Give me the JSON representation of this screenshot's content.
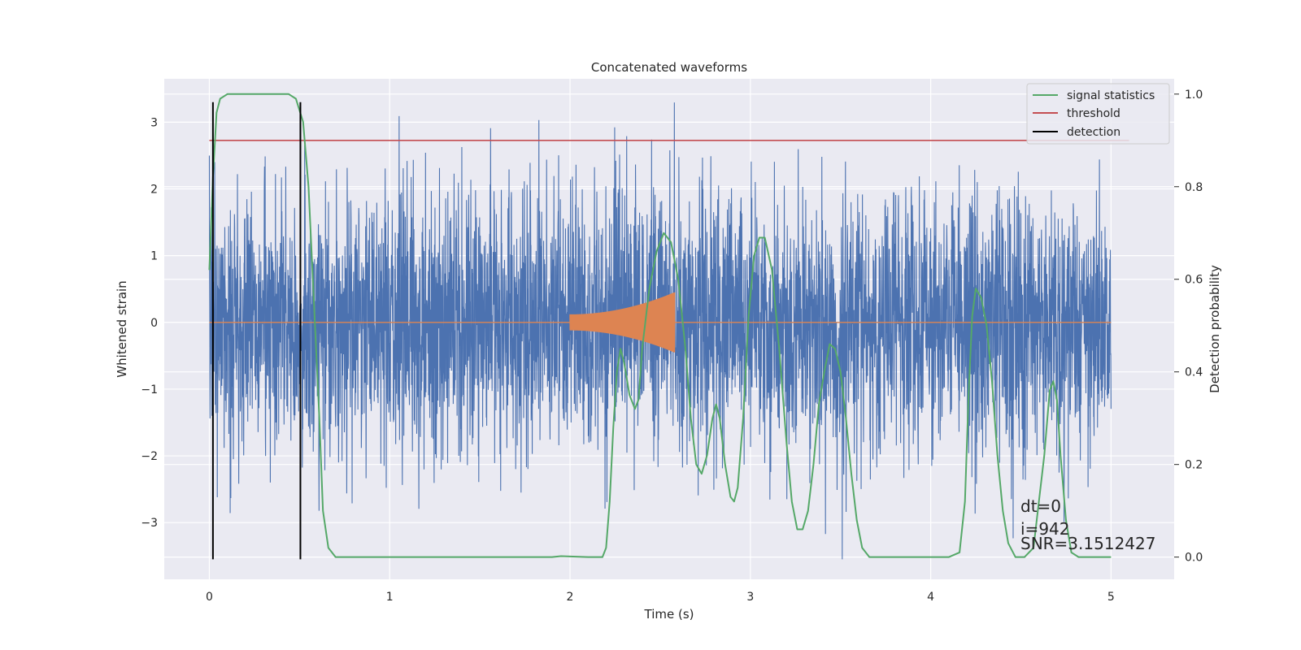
{
  "chart_data": {
    "type": "line",
    "title": "Concatenated waveforms",
    "xlabel": "Time (s)",
    "ylabel": "Whitened strain",
    "y2label": "Detection probability",
    "xlim": [
      -0.25,
      5.35
    ],
    "ylim": [
      -3.85,
      3.65
    ],
    "y2lim": [
      -0.048,
      1.033
    ],
    "x_ticks": [
      "0",
      "1",
      "2",
      "3",
      "4",
      "5"
    ],
    "y_ticks": [
      "−3",
      "−2",
      "−1",
      "0",
      "1",
      "2",
      "3"
    ],
    "y2_ticks": [
      "0.0",
      "0.2",
      "0.4",
      "0.6",
      "0.8",
      "1.0"
    ],
    "grid": true,
    "legend_position": "top-right",
    "colors": {
      "strain": "#4c72b0",
      "template": "#dd8452",
      "signal": "#55a868",
      "threshold": "#c44e52",
      "detection": "#000000",
      "background": "#eaeaf2"
    },
    "series": [
      {
        "name": "signal statistics",
        "axis": "right",
        "points": [
          [
            0.0,
            0.62
          ],
          [
            0.02,
            0.82
          ],
          [
            0.04,
            0.96
          ],
          [
            0.06,
            0.99
          ],
          [
            0.1,
            1.0
          ],
          [
            0.3,
            1.0
          ],
          [
            0.44,
            1.0
          ],
          [
            0.48,
            0.99
          ],
          [
            0.52,
            0.94
          ],
          [
            0.55,
            0.8
          ],
          [
            0.58,
            0.55
          ],
          [
            0.61,
            0.3
          ],
          [
            0.63,
            0.1
          ],
          [
            0.66,
            0.02
          ],
          [
            0.7,
            0.0
          ],
          [
            1.5,
            0.0
          ],
          [
            1.9,
            0.0
          ],
          [
            1.95,
            0.002
          ],
          [
            2.1,
            0.0
          ],
          [
            2.18,
            0.0
          ],
          [
            2.2,
            0.02
          ],
          [
            2.22,
            0.12
          ],
          [
            2.24,
            0.28
          ],
          [
            2.26,
            0.4
          ],
          [
            2.28,
            0.45
          ],
          [
            2.3,
            0.42
          ],
          [
            2.33,
            0.35
          ],
          [
            2.36,
            0.32
          ],
          [
            2.38,
            0.34
          ],
          [
            2.4,
            0.45
          ],
          [
            2.44,
            0.58
          ],
          [
            2.48,
            0.66
          ],
          [
            2.52,
            0.7
          ],
          [
            2.56,
            0.68
          ],
          [
            2.6,
            0.6
          ],
          [
            2.64,
            0.45
          ],
          [
            2.67,
            0.3
          ],
          [
            2.7,
            0.2
          ],
          [
            2.73,
            0.18
          ],
          [
            2.76,
            0.22
          ],
          [
            2.79,
            0.3
          ],
          [
            2.81,
            0.33
          ],
          [
            2.83,
            0.3
          ],
          [
            2.86,
            0.2
          ],
          [
            2.89,
            0.13
          ],
          [
            2.91,
            0.12
          ],
          [
            2.93,
            0.15
          ],
          [
            2.96,
            0.3
          ],
          [
            2.99,
            0.52
          ],
          [
            3.02,
            0.65
          ],
          [
            3.05,
            0.69
          ],
          [
            3.08,
            0.69
          ],
          [
            3.12,
            0.62
          ],
          [
            3.16,
            0.45
          ],
          [
            3.2,
            0.25
          ],
          [
            3.23,
            0.12
          ],
          [
            3.26,
            0.06
          ],
          [
            3.29,
            0.06
          ],
          [
            3.32,
            0.1
          ],
          [
            3.35,
            0.2
          ],
          [
            3.38,
            0.33
          ],
          [
            3.41,
            0.4
          ],
          [
            3.44,
            0.46
          ],
          [
            3.47,
            0.45
          ],
          [
            3.5,
            0.4
          ],
          [
            3.53,
            0.3
          ],
          [
            3.56,
            0.18
          ],
          [
            3.59,
            0.08
          ],
          [
            3.62,
            0.02
          ],
          [
            3.66,
            0.0
          ],
          [
            4.1,
            0.0
          ],
          [
            4.16,
            0.01
          ],
          [
            4.19,
            0.12
          ],
          [
            4.21,
            0.35
          ],
          [
            4.23,
            0.52
          ],
          [
            4.25,
            0.58
          ],
          [
            4.28,
            0.56
          ],
          [
            4.31,
            0.5
          ],
          [
            4.34,
            0.38
          ],
          [
            4.37,
            0.22
          ],
          [
            4.4,
            0.1
          ],
          [
            4.43,
            0.03
          ],
          [
            4.47,
            0.0
          ],
          [
            4.52,
            0.0
          ],
          [
            4.57,
            0.02
          ],
          [
            4.6,
            0.12
          ],
          [
            4.63,
            0.22
          ],
          [
            4.66,
            0.36
          ],
          [
            4.68,
            0.38
          ],
          [
            4.7,
            0.34
          ],
          [
            4.72,
            0.22
          ],
          [
            4.75,
            0.08
          ],
          [
            4.78,
            0.01
          ],
          [
            4.82,
            0.0
          ],
          [
            5.0,
            0.0
          ]
        ]
      },
      {
        "name": "threshold",
        "axis": "right",
        "points": [
          [
            0.0,
            0.9
          ],
          [
            5.1,
            0.9
          ]
        ]
      },
      {
        "name": "detection",
        "axis": "left",
        "segments": [
          {
            "x": 0.02,
            "y0": -3.55,
            "y1": 3.3
          },
          {
            "x": 0.505,
            "y0": -3.55,
            "y1": 3.3
          }
        ]
      }
    ],
    "strain": {
      "t_start": 0.0,
      "t_end": 5.0,
      "envelope": [
        [
          0.0,
          3.5
        ],
        [
          5.0,
          3.5
        ]
      ]
    },
    "template": {
      "t_start": 2.0,
      "t_end": 2.58,
      "amplitude_start": 0.12,
      "amplitude_end": 0.45
    },
    "annotation": {
      "line1": "dt=0",
      "line2": "i=942",
      "line3": "SNR=3.1512427"
    }
  }
}
